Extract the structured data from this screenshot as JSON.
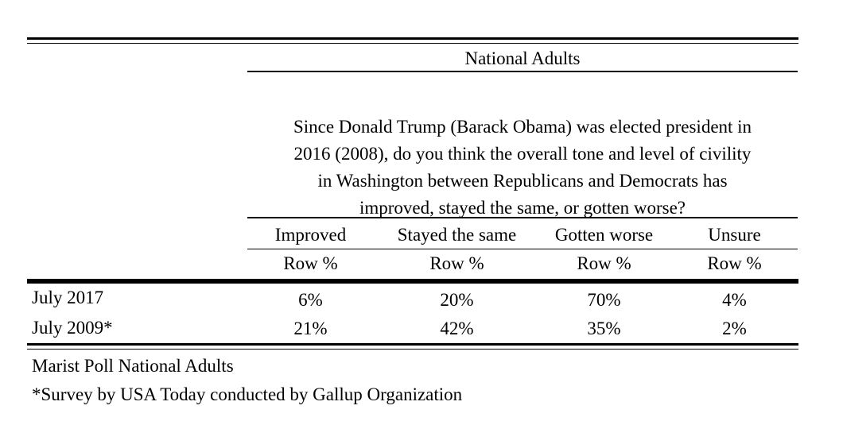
{
  "table": {
    "group_header": "National Adults",
    "question_lines": [
      "Since Donald Trump (Barack Obama) was elected president in",
      "2016 (2008), do you think the overall tone and level of civility",
      "in Washington between Republicans and Democrats has",
      "improved, stayed the same, or gotten worse?"
    ],
    "columns": [
      "Improved",
      "Stayed the same",
      "Gotten worse",
      "Unsure"
    ],
    "subheaders": [
      "Row %",
      "Row %",
      "Row %",
      "Row %"
    ],
    "rows": [
      {
        "label": "July 2017",
        "values": [
          "6%",
          "20%",
          "70%",
          "4%"
        ]
      },
      {
        "label": "July 2009*",
        "values": [
          "21%",
          "42%",
          "35%",
          "2%"
        ]
      }
    ]
  },
  "footnotes": [
    "Marist Poll National Adults",
    "*Survey by USA Today conducted by Gallup Organization"
  ]
}
